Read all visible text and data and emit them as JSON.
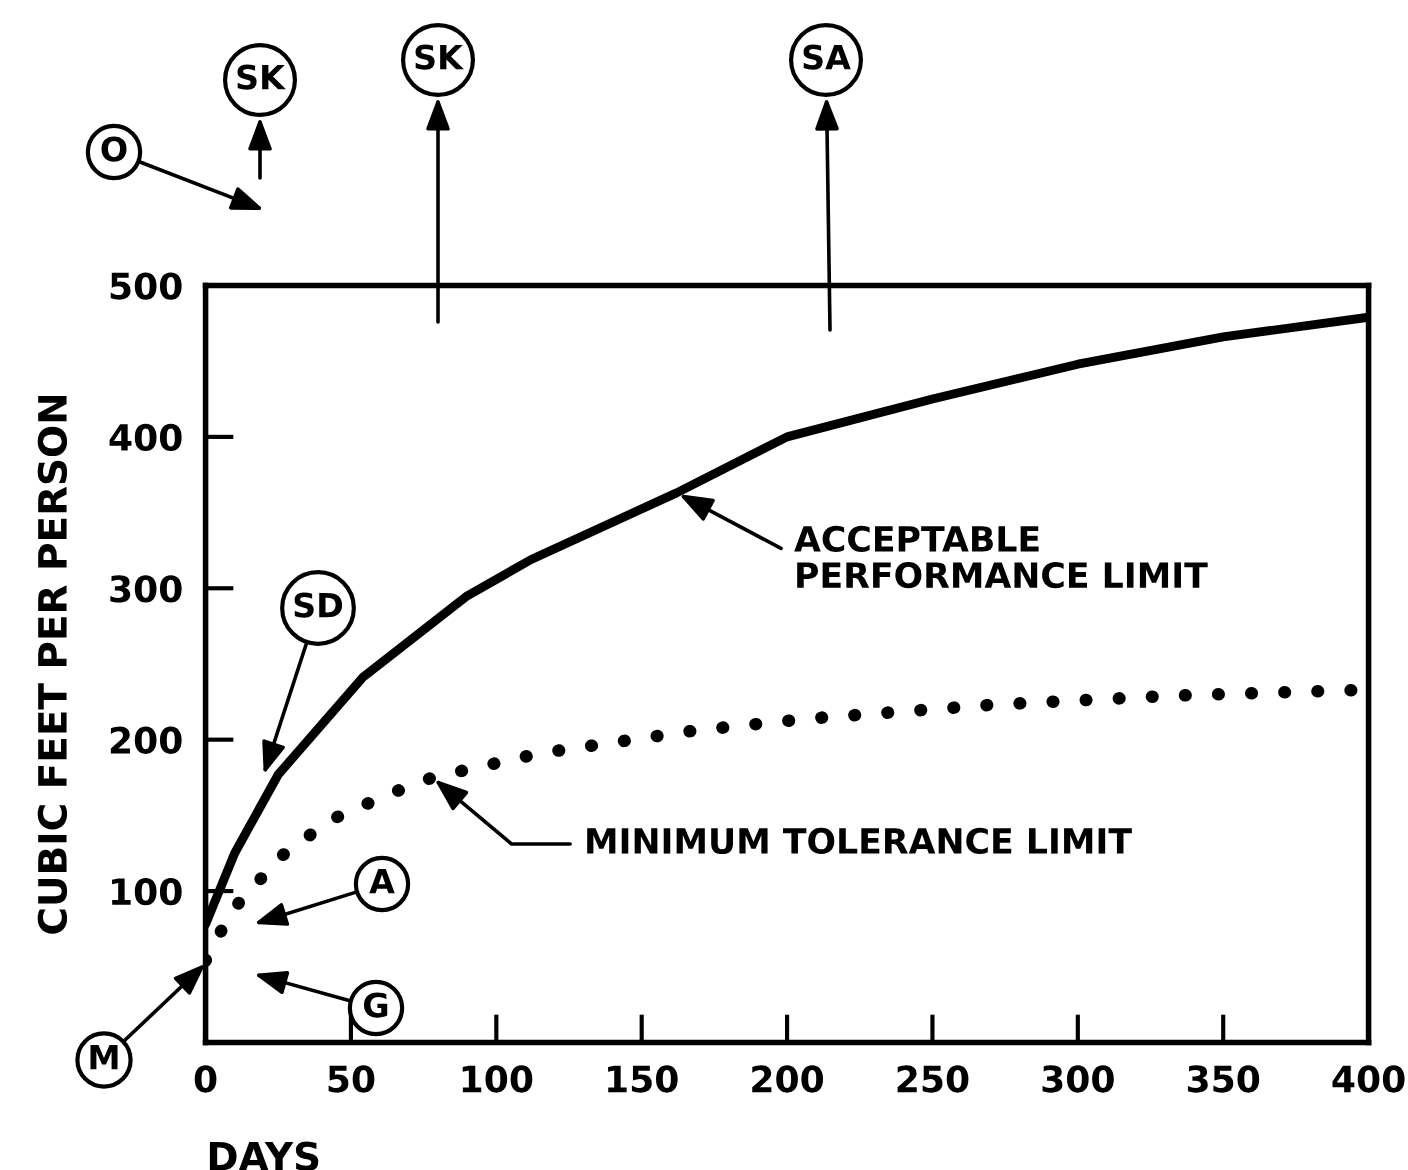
{
  "chart_data": {
    "type": "line",
    "xlabel": "DAYS",
    "ylabel": "CUBIC FEET PER PERSON",
    "xlim": [
      0,
      400
    ],
    "ylim": [
      0,
      500
    ],
    "xticks": [
      0,
      50,
      100,
      150,
      200,
      250,
      300,
      350,
      400
    ],
    "yticks": [
      {
        "value": 0,
        "label": null
      },
      100,
      200,
      300,
      400,
      500
    ],
    "grid": false,
    "legend": false,
    "marker": "none",
    "series": [
      {
        "name": "ACCEPTABLE\nPERFORMANCE LIMIT",
        "color": "#000000",
        "line_style": "solid",
        "x": [
          0,
          10,
          25,
          54,
          90,
          112,
          162,
          200,
          250,
          300,
          350,
          400
        ],
        "values": [
          78,
          125,
          177,
          241,
          295,
          319,
          363,
          400,
          425,
          448,
          466,
          479
        ]
      },
      {
        "name": "MINIMUM TOLERANCE LIMIT",
        "color": "#000000",
        "line_style": "dotted",
        "x": [
          0,
          9,
          26,
          43,
          63,
          78,
          115,
          168,
          208,
          270,
          332,
          400
        ],
        "values": [
          54,
          87,
          123,
          147,
          164,
          175,
          191,
          206,
          214,
          223,
          229,
          233
        ]
      }
    ],
    "annotations": [
      "O",
      "SK",
      "SK",
      "SA",
      {
        "text": "SD",
        "x": 20,
        "y": 177
      },
      "A",
      "G",
      {
        "text": "M",
        "x": 0,
        "y": 52
      }
    ]
  }
}
